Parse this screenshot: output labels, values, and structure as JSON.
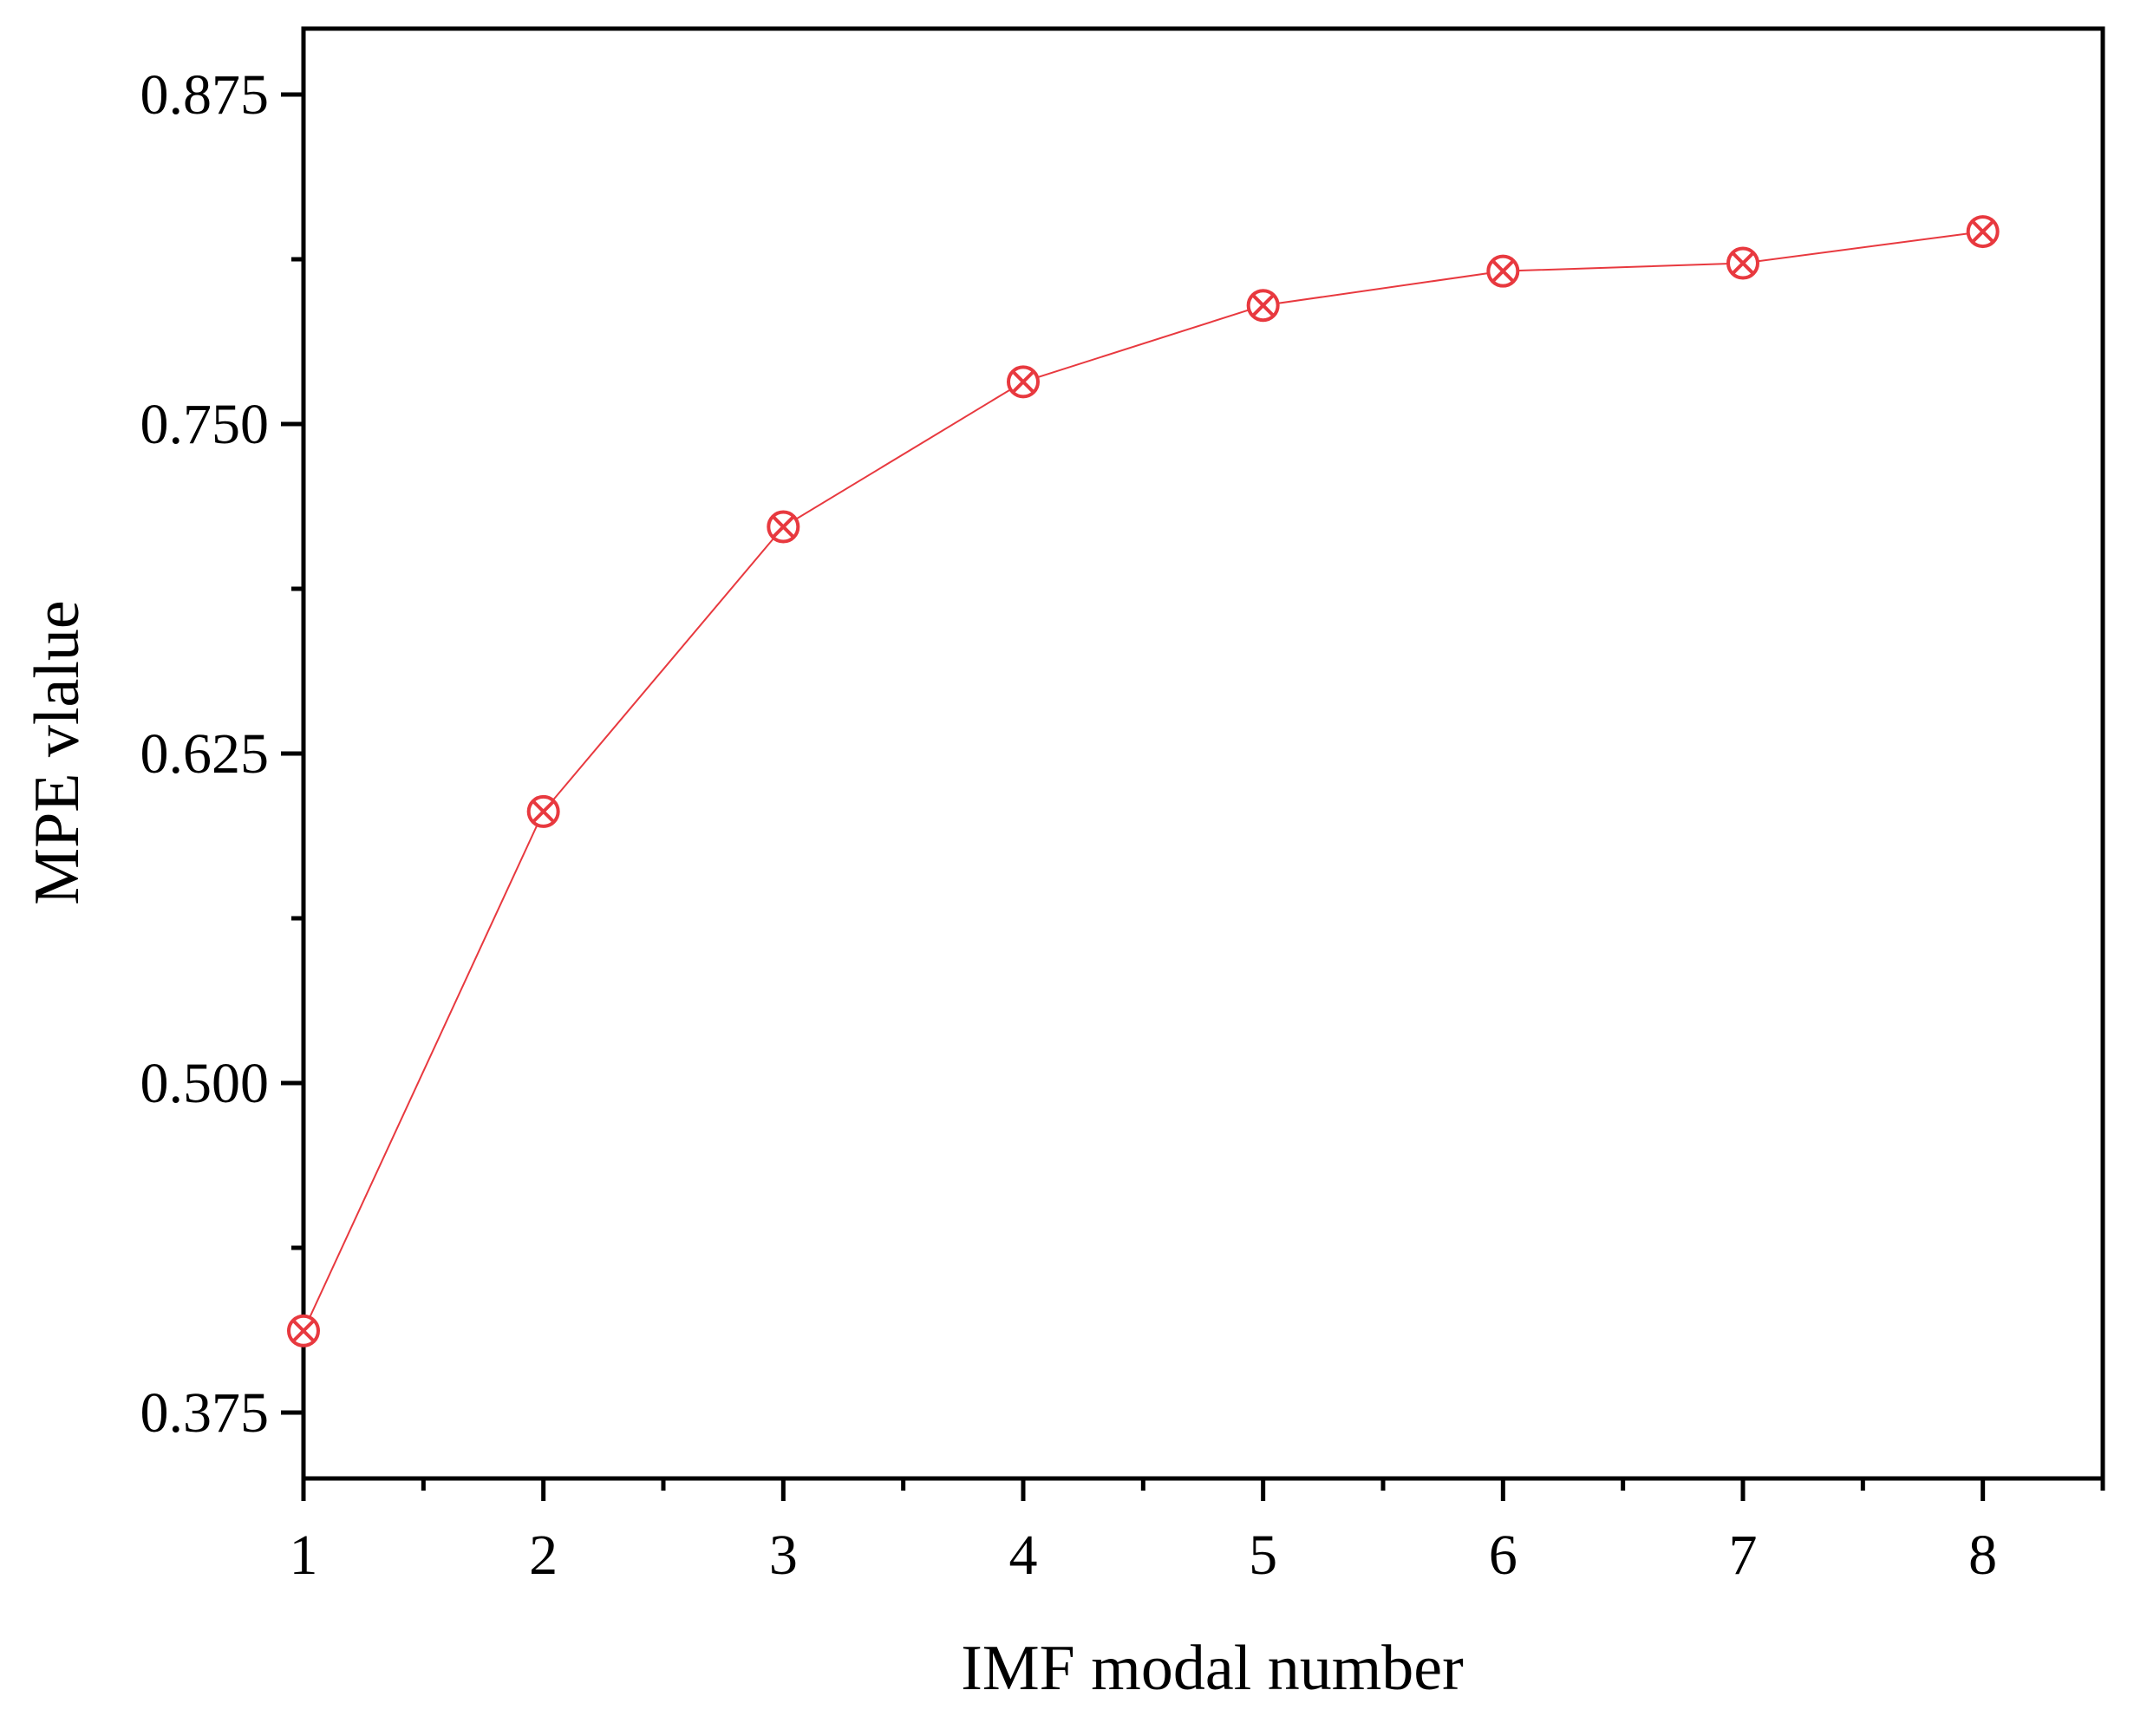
{
  "chart_data": {
    "type": "line",
    "title": "",
    "xlabel": "IMF modal number",
    "ylabel": "MPE vlalue",
    "x": [
      1,
      2,
      3,
      4,
      5,
      6,
      7,
      8
    ],
    "series": [
      {
        "values": [
          0.406,
          0.603,
          0.711,
          0.766,
          0.795,
          0.808,
          0.811,
          0.823
        ],
        "color": "#e8393f",
        "marker": "circle-x"
      }
    ],
    "xlim": [
      1,
      8.5
    ],
    "ylim": [
      0.35,
      0.9
    ],
    "xticks": [
      "1",
      "2",
      "3",
      "4",
      "5",
      "6",
      "7",
      "8"
    ],
    "yticks": [
      "0.375",
      "0.500",
      "0.625",
      "0.750",
      "0.875"
    ],
    "grid": false,
    "legend": "none"
  }
}
